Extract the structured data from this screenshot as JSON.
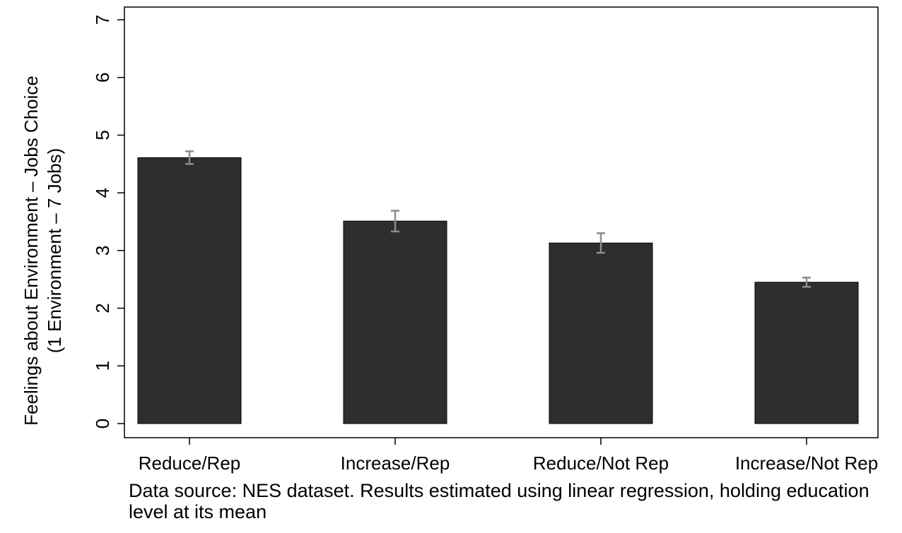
{
  "chart_data": {
    "type": "bar",
    "categories": [
      "Reduce/Rep",
      "Increase/Rep",
      "Reduce/Not Rep",
      "Increase/Not Rep"
    ],
    "values": [
      4.61,
      3.51,
      3.13,
      2.45
    ],
    "error_low": [
      4.5,
      3.33,
      2.96,
      2.37
    ],
    "error_high": [
      4.72,
      3.69,
      3.3,
      2.53
    ],
    "ylabel_line1": "Feelings about Environment – Jobs Choice",
    "ylabel_line2": "(1 Environment – 7 Jobs)",
    "ylim": [
      0,
      7
    ],
    "yticks": [
      0,
      1,
      2,
      3,
      4,
      5,
      6,
      7
    ],
    "grid": false,
    "legend": "none",
    "bar_color": "#2e2e2e",
    "error_color": "#8c8c8c"
  },
  "note": "Data source: NES dataset. Results estimated using linear regression, holding education level at its mean"
}
